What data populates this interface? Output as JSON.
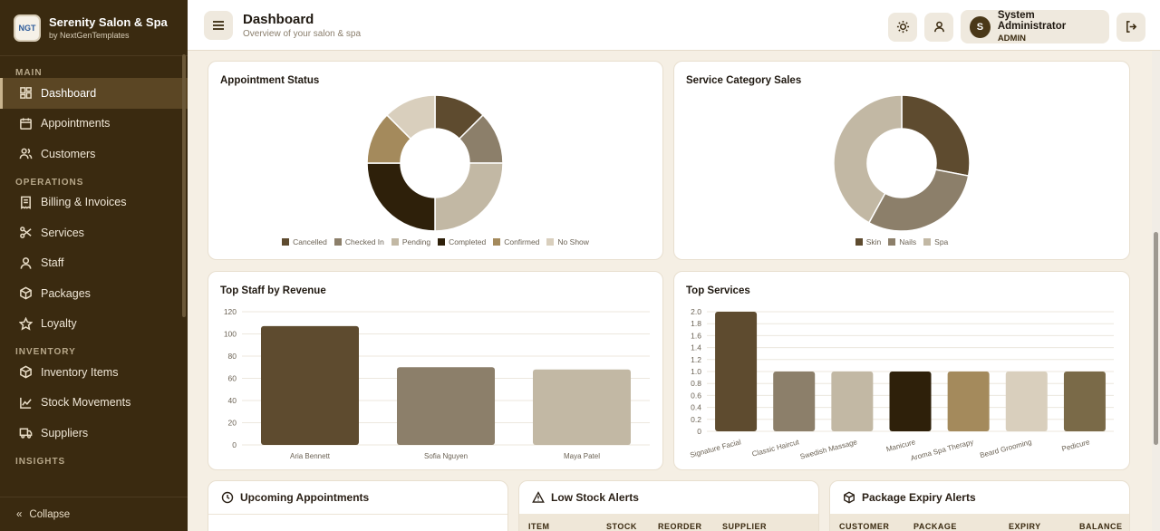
{
  "brand": {
    "name": "Serenity Salon & Spa",
    "sub": "by NextGenTemplates",
    "logo_text": "NGT"
  },
  "sidebar": {
    "sections": [
      {
        "label": "MAIN"
      },
      {
        "label": "OPERATIONS"
      },
      {
        "label": "INVENTORY"
      },
      {
        "label": "INSIGHTS"
      }
    ],
    "items": [
      {
        "label": "Dashboard",
        "icon": "dashboard-icon"
      },
      {
        "label": "Appointments",
        "icon": "calendar-icon"
      },
      {
        "label": "Customers",
        "icon": "users-icon"
      },
      {
        "label": "Billing & Invoices",
        "icon": "receipt-icon"
      },
      {
        "label": "Services",
        "icon": "scissors-icon"
      },
      {
        "label": "Staff",
        "icon": "user-icon"
      },
      {
        "label": "Packages",
        "icon": "package-icon"
      },
      {
        "label": "Loyalty",
        "icon": "star-icon"
      },
      {
        "label": "Inventory Items",
        "icon": "box-icon"
      },
      {
        "label": "Stock Movements",
        "icon": "chart-line-icon"
      },
      {
        "label": "Suppliers",
        "icon": "truck-icon"
      }
    ],
    "collapse_label": "Collapse",
    "collapse_glyph": "«"
  },
  "header": {
    "title": "Dashboard",
    "subtitle": "Overview of your salon & spa",
    "user": {
      "name": "System Administrator",
      "role": "ADMIN",
      "initial": "S"
    }
  },
  "cards": {
    "appointment_status": "Appointment Status",
    "service_category": "Service Category Sales",
    "top_staff": "Top Staff by Revenue",
    "top_services": "Top Services",
    "upcoming": "Upcoming Appointments",
    "low_stock": "Low Stock Alerts",
    "package_expiry": "Package Expiry Alerts"
  },
  "tables": {
    "low_stock_cols": [
      "ITEM",
      "STOCK",
      "REORDER",
      "SUPPLIER"
    ],
    "package_cols": [
      "CUSTOMER",
      "PACKAGE",
      "EXPIRY",
      "BALANCE"
    ]
  },
  "chart_data": [
    {
      "type": "pie",
      "title": "Appointment Status",
      "labels": [
        "Cancelled",
        "Checked In",
        "Pending",
        "Completed",
        "Confirmed",
        "No Show"
      ],
      "values": [
        1,
        1,
        2,
        2,
        1,
        1
      ],
      "colors": [
        "#5e4b2f",
        "#8c7f6a",
        "#c2b8a4",
        "#2e200a",
        "#a48a5c",
        "#d9cfbd"
      ],
      "legend": "bottom"
    },
    {
      "type": "pie",
      "title": "Service Category Sales",
      "labels": [
        "Skin",
        "Nails",
        "Spa"
      ],
      "values": [
        28,
        30,
        42
      ],
      "colors": [
        "#5e4b2f",
        "#8c7f6a",
        "#c2b8a4"
      ],
      "legend": "bottom"
    },
    {
      "type": "bar",
      "title": "Top Staff by Revenue",
      "categories": [
        "Aria Bennett",
        "Sofia Nguyen",
        "Maya Patel"
      ],
      "values": [
        107,
        70,
        68
      ],
      "colors": [
        "#5e4b2f",
        "#8c7f6a",
        "#c2b8a4"
      ],
      "ylim": [
        0,
        120
      ],
      "yticks": [
        0,
        20,
        40,
        60,
        80,
        100,
        120
      ],
      "grid": true
    },
    {
      "type": "bar",
      "title": "Top Services",
      "categories": [
        "Signature Facial",
        "Classic Haircut",
        "Swedish Massage",
        "Manicure",
        "Aroma Spa Therapy",
        "Beard Grooming",
        "Pedicure"
      ],
      "values": [
        2,
        1,
        1,
        1,
        1,
        1,
        1
      ],
      "colors": [
        "#5e4b2f",
        "#8c7f6a",
        "#c2b8a4",
        "#2e200a",
        "#a48a5c",
        "#d9cfbd",
        "#7a6a48"
      ],
      "ylim": [
        0,
        2
      ],
      "yticks": [
        "0",
        "0.2",
        "0.4",
        "0.6",
        "0.8",
        "1.0",
        "1.2",
        "1.4",
        "1.6",
        "1.8",
        "2.0"
      ],
      "grid": true
    }
  ]
}
